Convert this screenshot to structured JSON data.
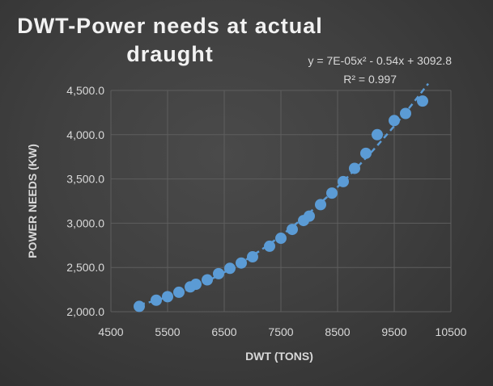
{
  "chart_data": {
    "type": "scatter",
    "title_line1": "DWT-Power needs at actual",
    "title_line2": "draught",
    "xlabel": "DWT (TONS)",
    "ylabel": "POWER NEEDS (KW)",
    "xlim": [
      4500,
      10500
    ],
    "ylim": [
      2000,
      4500
    ],
    "x_ticks": [
      "4500",
      "5500",
      "6500",
      "7500",
      "8500",
      "9500",
      "10500"
    ],
    "y_ticks": [
      "2,000.0",
      "2,500.0",
      "3,000.0",
      "3,500.0",
      "4,000.0",
      "4,500.0"
    ],
    "grid": true,
    "trendline": {
      "type": "polynomial",
      "order": 2,
      "equation": "y = 7E-05x² - 0.54x + 3092.8",
      "r_squared": "R² = 0.997"
    },
    "colors": {
      "marker": "#5b9bd5",
      "trendline": "#5b9bd5"
    },
    "points": [
      {
        "x": 5000,
        "y": 2060
      },
      {
        "x": 5300,
        "y": 2130
      },
      {
        "x": 5500,
        "y": 2170
      },
      {
        "x": 5700,
        "y": 2220
      },
      {
        "x": 5900,
        "y": 2280
      },
      {
        "x": 6000,
        "y": 2310
      },
      {
        "x": 6200,
        "y": 2360
      },
      {
        "x": 6400,
        "y": 2430
      },
      {
        "x": 6600,
        "y": 2490
      },
      {
        "x": 6800,
        "y": 2550
      },
      {
        "x": 7000,
        "y": 2620
      },
      {
        "x": 7300,
        "y": 2740
      },
      {
        "x": 7500,
        "y": 2830
      },
      {
        "x": 7700,
        "y": 2930
      },
      {
        "x": 7900,
        "y": 3030
      },
      {
        "x": 8000,
        "y": 3080
      },
      {
        "x": 8200,
        "y": 3210
      },
      {
        "x": 8400,
        "y": 3340
      },
      {
        "x": 8600,
        "y": 3470
      },
      {
        "x": 8800,
        "y": 3620
      },
      {
        "x": 9000,
        "y": 3790
      },
      {
        "x": 9200,
        "y": 4000
      },
      {
        "x": 9500,
        "y": 4160
      },
      {
        "x": 9700,
        "y": 4240
      },
      {
        "x": 10000,
        "y": 4380
      }
    ]
  }
}
